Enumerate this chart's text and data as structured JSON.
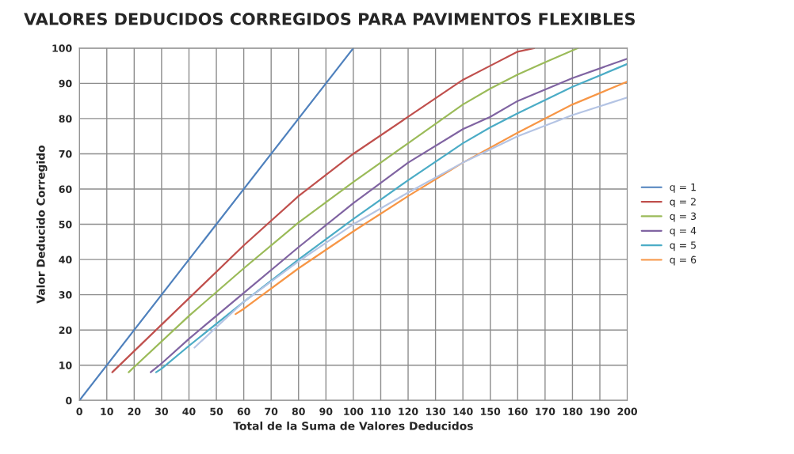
{
  "chart_data": {
    "type": "line",
    "title": "VALORES DEDUCIDOS CORREGIDOS PARA PAVIMENTOS FLEXIBLES",
    "xlabel": "Total de la Suma de Valores Deducidos",
    "ylabel": "Valor Deducido Corregido",
    "xlim": [
      0,
      200
    ],
    "xticks": [
      0,
      10,
      20,
      30,
      40,
      50,
      60,
      70,
      80,
      90,
      100,
      110,
      120,
      130,
      140,
      150,
      160,
      170,
      180,
      190,
      200
    ],
    "ylim": [
      0,
      100
    ],
    "yticks": [
      0,
      10,
      20,
      30,
      40,
      50,
      60,
      70,
      80,
      90,
      100
    ],
    "grid": true,
    "legend": "right",
    "marker": "none",
    "line_style": "solid",
    "series": [
      {
        "name": "q = 1",
        "color": "#4f81bd",
        "x": [
          0,
          100
        ],
        "values": [
          0,
          100
        ]
      },
      {
        "name": "q = 2",
        "color": "#c0504d",
        "x": [
          12,
          20,
          40,
          60,
          80,
          100,
          120,
          140,
          150,
          160,
          166
        ],
        "values": [
          8,
          14,
          29,
          44,
          58,
          70,
          80.5,
          91,
          95,
          99,
          100
        ]
      },
      {
        "name": "q = 3",
        "color": "#9bbb59",
        "x": [
          18,
          20,
          40,
          60,
          80,
          100,
          120,
          130,
          140,
          150,
          160,
          170,
          182
        ],
        "values": [
          8,
          9.5,
          24,
          37.5,
          50.5,
          62,
          73,
          78.5,
          84,
          88.5,
          92.5,
          96,
          100
        ]
      },
      {
        "name": "q = 4",
        "color": "#8064a2",
        "x": [
          26,
          30,
          40,
          60,
          80,
          100,
          120,
          140,
          150,
          160,
          180,
          200
        ],
        "values": [
          8,
          10.5,
          17.5,
          30.5,
          43.5,
          56,
          67.5,
          77,
          80.5,
          85,
          91.5,
          97
        ]
      },
      {
        "name": "q = 5",
        "color": "#4bacc6",
        "x": [
          28,
          30,
          40,
          60,
          80,
          100,
          120,
          140,
          150,
          160,
          180,
          200
        ],
        "values": [
          8,
          9,
          15.5,
          28,
          40,
          51.5,
          62.5,
          73,
          77.5,
          81.5,
          89,
          95.5
        ]
      },
      {
        "name": "q = 6",
        "color": "#f79646",
        "x": [
          57,
          60,
          80,
          100,
          120,
          140,
          160,
          180,
          200
        ],
        "values": [
          24.5,
          26,
          37.5,
          48,
          58,
          67.5,
          76,
          84,
          90.5
        ]
      },
      {
        "color": "#b4c4e4",
        "x": [
          42,
          60,
          80,
          100,
          120,
          140,
          160,
          180,
          200
        ],
        "values": [
          15,
          28,
          39.5,
          50,
          59,
          67.5,
          75,
          81,
          86
        ]
      }
    ]
  }
}
